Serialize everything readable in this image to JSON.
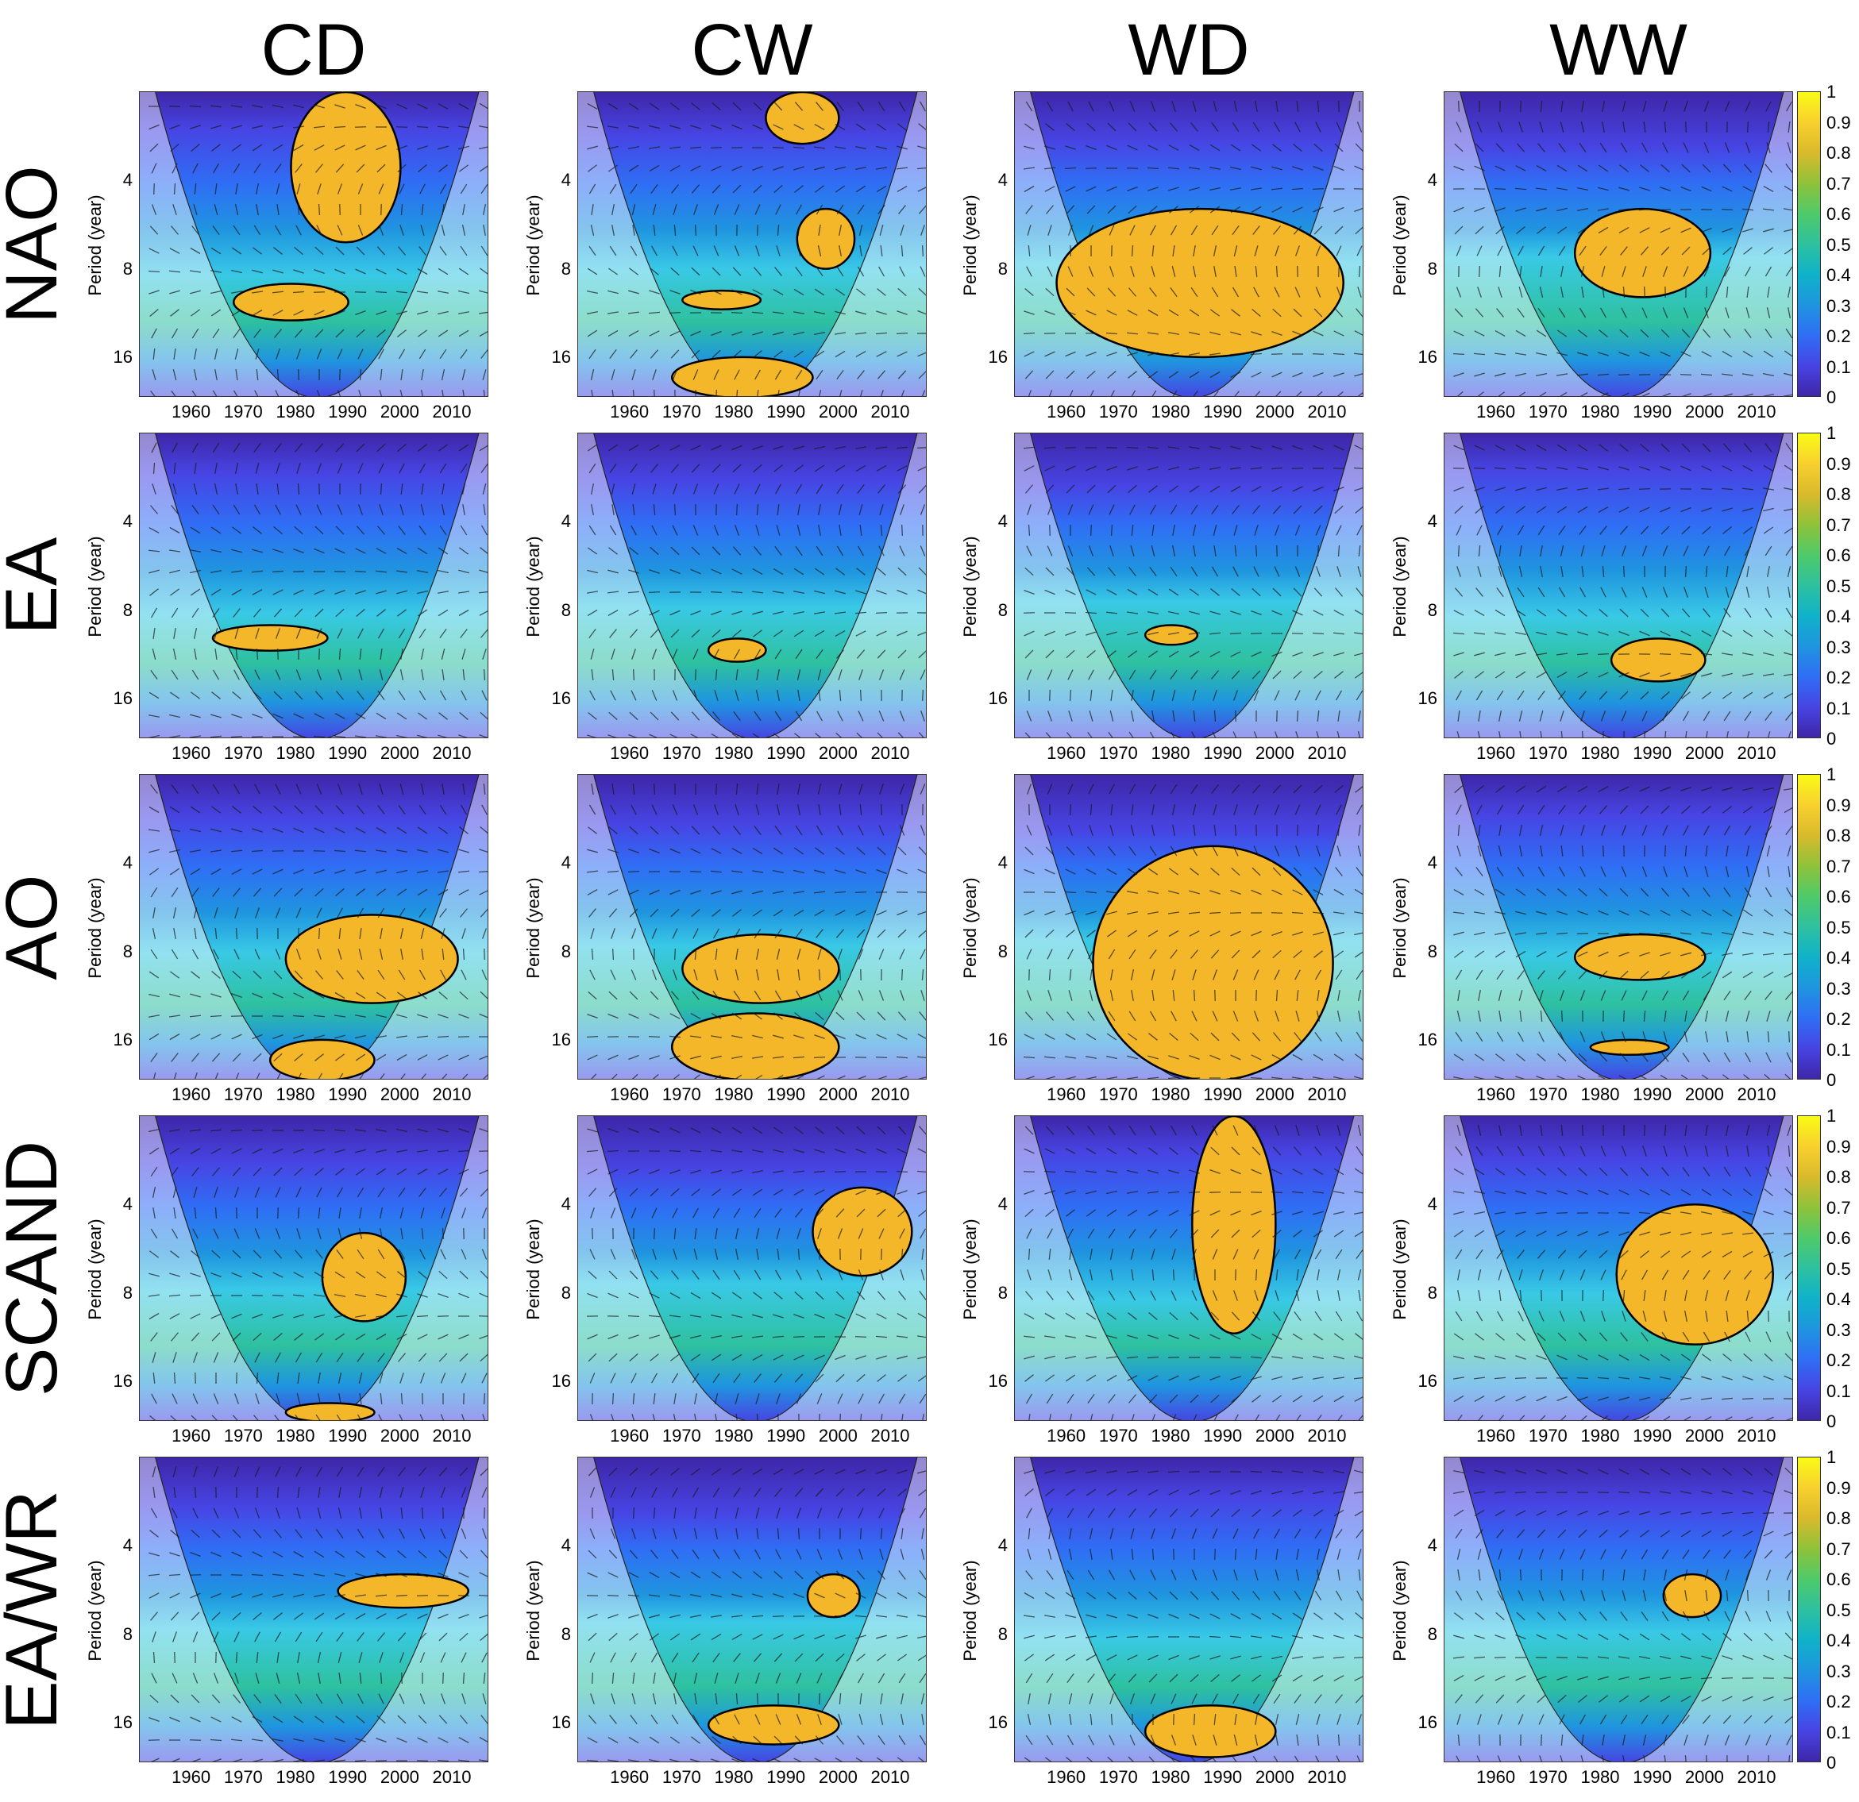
{
  "columns": [
    "CD",
    "CW",
    "WD",
    "WW"
  ],
  "rows": [
    "NAO",
    "EA",
    "AO",
    "SCAND",
    "EA/WR"
  ],
  "ylabel": "Period (year)",
  "yticks": [
    "4",
    "8",
    "16"
  ],
  "xticks": [
    "1960",
    "1970",
    "1980",
    "1990",
    "2000",
    "2010"
  ],
  "colorbar_ticks": [
    "1",
    "0.9",
    "0.8",
    "0.7",
    "0.6",
    "0.5",
    "0.4",
    "0.3",
    "0.2",
    "0.1",
    "0"
  ],
  "colors": {
    "low": "#3e26a8",
    "mid": "#2ec19f",
    "high": "#f9fb15",
    "significant": "#f5b72a",
    "background": "#39c9e6"
  },
  "chart_data": {
    "type": "heatmap",
    "title": "",
    "xlabel": "",
    "ylabel": "Period (year)",
    "xlim": [
      1950,
      2017
    ],
    "ylim": [
      2,
      22
    ],
    "yscale": "log2",
    "colorbar_range": [
      0,
      1
    ],
    "grid": "4 columns x 5 rows",
    "panels": [
      {
        "row": "NAO",
        "col": "CD",
        "significant_regions": [
          {
            "x": [
              1979,
              2000
            ],
            "y": [
              2,
              6.5
            ]
          },
          {
            "x": [
              1968,
              1990
            ],
            "y": [
              9,
              12
            ]
          }
        ]
      },
      {
        "row": "NAO",
        "col": "CW",
        "significant_regions": [
          {
            "x": [
              1986,
              2000
            ],
            "y": [
              2,
              3
            ]
          },
          {
            "x": [
              1992,
              2003
            ],
            "y": [
              5,
              8
            ]
          },
          {
            "x": [
              1970,
              1985
            ],
            "y": [
              9.5,
              11
            ]
          },
          {
            "x": [
              1968,
              1995
            ],
            "y": [
              16,
              22
            ]
          }
        ]
      },
      {
        "row": "NAO",
        "col": "WD",
        "significant_regions": [
          {
            "x": [
              1958,
              2013
            ],
            "y": [
              5,
              16
            ]
          }
        ]
      },
      {
        "row": "NAO",
        "col": "WW",
        "significant_regions": [
          {
            "x": [
              1975,
              2001
            ],
            "y": [
              5,
              10
            ]
          }
        ]
      },
      {
        "row": "EA",
        "col": "CD",
        "significant_regions": [
          {
            "x": [
              1964,
              1986
            ],
            "y": [
              9,
              11
            ]
          }
        ]
      },
      {
        "row": "EA",
        "col": "CW",
        "significant_regions": [
          {
            "x": [
              1975,
              1986
            ],
            "y": [
              10,
              12
            ]
          }
        ]
      },
      {
        "row": "EA",
        "col": "WD",
        "significant_regions": [
          {
            "x": [
              1975,
              1985
            ],
            "y": [
              9,
              10.5
            ]
          }
        ]
      },
      {
        "row": "EA",
        "col": "WW",
        "significant_regions": [
          {
            "x": [
              1982,
              2000
            ],
            "y": [
              10,
              14
            ]
          }
        ]
      },
      {
        "row": "AO",
        "col": "CD",
        "significant_regions": [
          {
            "x": [
              1978,
              2011
            ],
            "y": [
              6,
              12
            ]
          },
          {
            "x": [
              1975,
              1995
            ],
            "y": [
              16,
              22
            ]
          }
        ]
      },
      {
        "row": "AO",
        "col": "CW",
        "significant_regions": [
          {
            "x": [
              1970,
              2000
            ],
            "y": [
              7,
              12
            ]
          },
          {
            "x": [
              1968,
              2000
            ],
            "y": [
              13,
              22
            ]
          }
        ]
      },
      {
        "row": "AO",
        "col": "WD",
        "significant_regions": [
          {
            "x": [
              1965,
              2011
            ],
            "y": [
              3.5,
              22
            ]
          }
        ]
      },
      {
        "row": "AO",
        "col": "WW",
        "significant_regions": [
          {
            "x": [
              1975,
              2000
            ],
            "y": [
              7,
              10
            ]
          },
          {
            "x": [
              1978,
              1993
            ],
            "y": [
              16,
              18
            ]
          }
        ]
      },
      {
        "row": "SCAND",
        "col": "CD",
        "significant_regions": [
          {
            "x": [
              1985,
              2001
            ],
            "y": [
              5,
              10
            ]
          },
          {
            "x": [
              1978,
              1995
            ],
            "y": [
              19,
              22
            ]
          }
        ]
      },
      {
        "row": "SCAND",
        "col": "CW",
        "significant_regions": [
          {
            "x": [
              1995,
              2014
            ],
            "y": [
              3.5,
              7
            ]
          }
        ]
      },
      {
        "row": "SCAND",
        "col": "WD",
        "significant_regions": [
          {
            "x": [
              1984,
              2000
            ],
            "y": [
              2,
              11
            ]
          }
        ]
      },
      {
        "row": "SCAND",
        "col": "WW",
        "significant_regions": [
          {
            "x": [
              1983,
              2013
            ],
            "y": [
              4,
              12
            ]
          }
        ]
      },
      {
        "row": "EA/WR",
        "col": "CD",
        "significant_regions": [
          {
            "x": [
              1988,
              2013
            ],
            "y": [
              5,
              6.5
            ]
          }
        ]
      },
      {
        "row": "EA/WR",
        "col": "CW",
        "significant_regions": [
          {
            "x": [
              1994,
              2004
            ],
            "y": [
              5,
              7
            ]
          },
          {
            "x": [
              1975,
              2000
            ],
            "y": [
              14,
              19
            ]
          }
        ]
      },
      {
        "row": "EA/WR",
        "col": "WD",
        "significant_regions": [
          {
            "x": [
              1975,
              2000
            ],
            "y": [
              14,
              21
            ]
          }
        ]
      },
      {
        "row": "EA/WR",
        "col": "WW",
        "significant_regions": [
          {
            "x": [
              1992,
              2003
            ],
            "y": [
              5,
              7
            ]
          }
        ]
      }
    ]
  }
}
